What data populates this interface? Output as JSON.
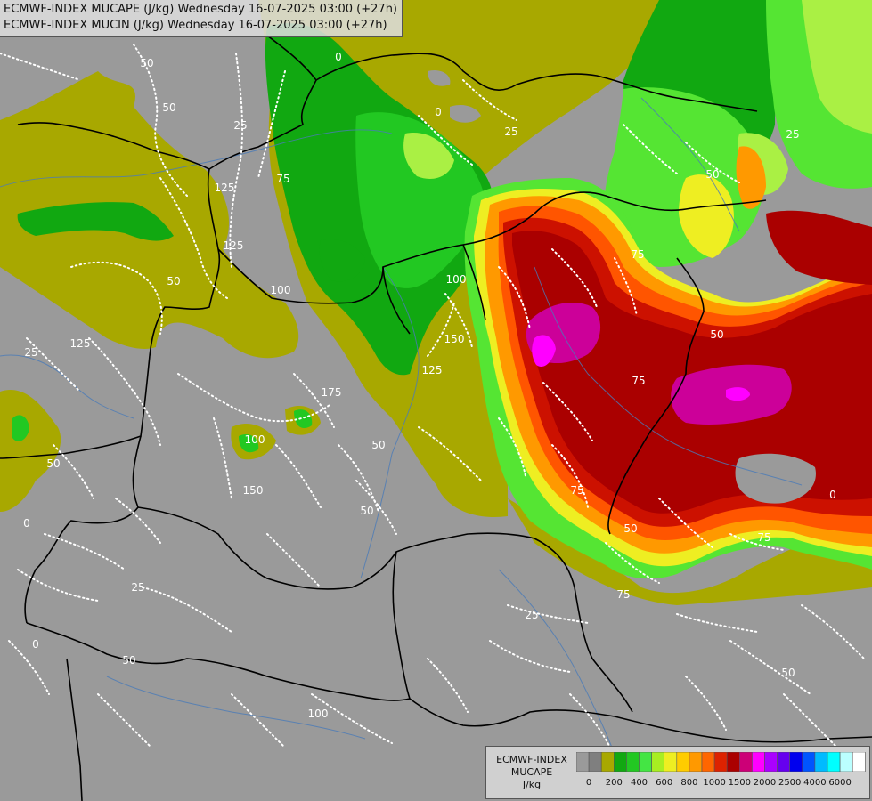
{
  "titles": {
    "line1": "ECMWF-INDEX MUCAPE (J/kg) Wednesday 16-07-2025 03:00 (+27h)",
    "line2": "ECMWF-INDEX MUCIN (J/kg) Wednesday 16-07-2025 03:00 (+27h)"
  },
  "legend": {
    "line1": "ECMWF-INDEX",
    "line2": "MUCAPE",
    "unit": "J/kg",
    "colors": [
      "#9a9a9a",
      "#7f7f7f",
      "#a8a800",
      "#11a811",
      "#22c822",
      "#44e544",
      "#a8ee22",
      "#eeee22",
      "#ffcc00",
      "#ff9900",
      "#ff6600",
      "#dd2200",
      "#aa0000",
      "#cc0077",
      "#ff00ff",
      "#aa00ff",
      "#6600ee",
      "#0000ee",
      "#0055ff",
      "#00bbff",
      "#00ffff",
      "#bbffff",
      "#ffffff"
    ],
    "ticks": [
      "0",
      "200",
      "400",
      "600",
      "800",
      "1000",
      "1500",
      "2000",
      "2500",
      "4000",
      "6000"
    ]
  },
  "map": {
    "cape_colors": {
      "olive": "#a8a800",
      "green_dark": "#11a811",
      "green": "#33c833",
      "green_light": "#66ee33",
      "lime": "#aaf044",
      "yellow": "#eeee22",
      "orange": "#ff9900",
      "orange_red": "#ff5500",
      "red": "#cc1100",
      "dark_red": "#aa0000",
      "magenta": "#cc0099",
      "bright_magenta": "#ff00ff"
    },
    "mucin_labels": [
      "50",
      "25",
      "50",
      "125",
      "75",
      "25",
      "125",
      "50",
      "150",
      "125",
      "100",
      "175",
      "150",
      "25",
      "75",
      "75",
      "75",
      "25",
      "50",
      "50",
      "50",
      "50",
      "50",
      "25",
      "75",
      "100",
      "0",
      "0",
      "0",
      "0",
      "50",
      "100",
      "50",
      "50",
      "25",
      "125",
      "0",
      "75",
      "100"
    ]
  }
}
